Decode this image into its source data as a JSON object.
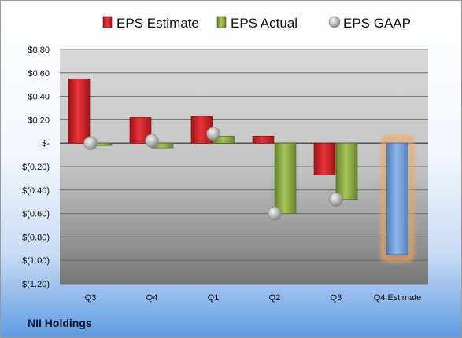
{
  "company": "NII Holdings",
  "colors": {
    "estimate": "#d7262c",
    "actual": "#92b346",
    "gaap": "#b8b8b8",
    "future_estimate": "#7aa7de",
    "future_highlight": "#f6a35b"
  },
  "chart_data": {
    "type": "bar",
    "categories": [
      "Q3",
      "Q4",
      "Q1",
      "Q2",
      "Q3",
      "Q4 Estimate"
    ],
    "series": [
      {
        "name": "EPS Estimate",
        "values": [
          0.55,
          0.22,
          0.23,
          0.06,
          -0.27,
          -0.95
        ]
      },
      {
        "name": "EPS Actual",
        "values": [
          -0.02,
          -0.04,
          0.06,
          -0.6,
          -0.48,
          null
        ]
      },
      {
        "name": "EPS GAAP",
        "values": [
          0.0,
          0.02,
          0.08,
          -0.6,
          -0.48,
          null
        ]
      }
    ],
    "yticks": [
      "$0.80",
      "$0.60",
      "$0.40",
      "$0.20",
      "$-",
      "$(0.20)",
      "$(0.40)",
      "$(0.60)",
      "$(0.80)",
      "$(1.00)",
      "$(1.20)"
    ],
    "ylim": [
      -1.2,
      0.8
    ],
    "legend_position": "top",
    "grid": true
  }
}
